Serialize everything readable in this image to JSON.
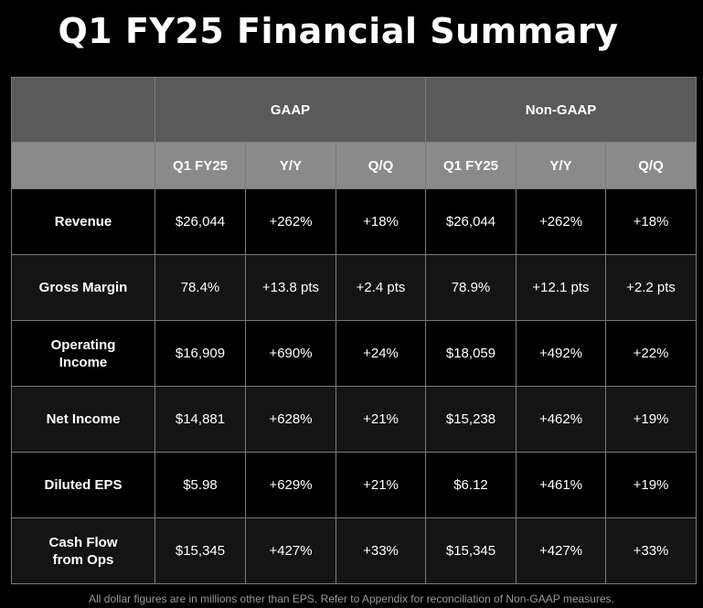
{
  "title": "Q1 FY25 Financial Summary",
  "table": {
    "groups": [
      "GAAP",
      "Non-GAAP"
    ],
    "subheaders": [
      "Q1 FY25",
      "Y/Y",
      "Q/Q",
      "Q1 FY25",
      "Y/Y",
      "Q/Q"
    ],
    "rows": [
      {
        "label": "Revenue",
        "values": [
          "$26,044",
          "+262%",
          "+18%",
          "$26,044",
          "+262%",
          "+18%"
        ]
      },
      {
        "label": "Gross Margin",
        "values": [
          "78.4%",
          "+13.8 pts",
          "+2.4 pts",
          "78.9%",
          "+12.1 pts",
          "+2.2 pts"
        ]
      },
      {
        "label": "Operating\nIncome",
        "values": [
          "$16,909",
          "+690%",
          "+24%",
          "$18,059",
          "+492%",
          "+22%"
        ]
      },
      {
        "label": "Net Income",
        "values": [
          "$14,881",
          "+628%",
          "+21%",
          "$15,238",
          "+462%",
          "+19%"
        ]
      },
      {
        "label": "Diluted EPS",
        "values": [
          "$5.98",
          "+629%",
          "+21%",
          "$6.12",
          "+461%",
          "+19%"
        ]
      },
      {
        "label": "Cash Flow\nfrom Ops",
        "values": [
          "$15,345",
          "+427%",
          "+33%",
          "$15,345",
          "+427%",
          "+33%"
        ]
      }
    ]
  },
  "footnote": "All dollar figures are in millions other than EPS. Refer to Appendix for reconciliation of Non-GAAP measures."
}
